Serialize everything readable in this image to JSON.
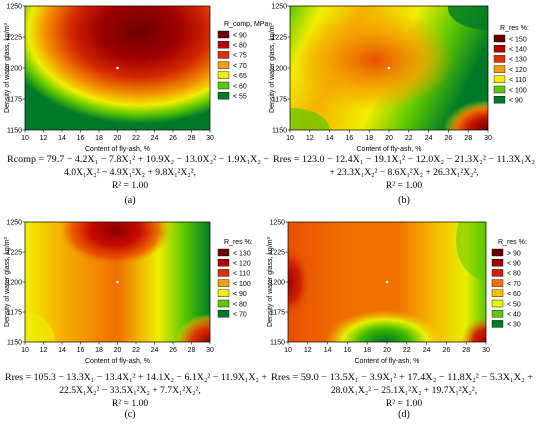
{
  "chart_data": [
    {
      "type": "heatmap",
      "panel_label": "(a)",
      "xlabel": "Content of fly-ash, %",
      "ylabel": "Density of water glass, kg/m³",
      "x_ticks": [
        10,
        12,
        14,
        16,
        18,
        20,
        22,
        24,
        26,
        28,
        30
      ],
      "y_ticks": [
        1150,
        1175,
        1200,
        1225,
        1250
      ],
      "xlim": [
        10,
        30
      ],
      "ylim": [
        1150,
        1250
      ],
      "legend_title": "R_comp, MPa:",
      "legend": [
        {
          "label": "< 90",
          "color": "#6e0000"
        },
        {
          "label": "< 80",
          "color": "#b40000"
        },
        {
          "label": "< 75",
          "color": "#e03000"
        },
        {
          "label": "< 70",
          "color": "#f5a000"
        },
        {
          "label": "< 65",
          "color": "#f0f000"
        },
        {
          "label": "< 60",
          "color": "#5cc800"
        },
        {
          "label": "< 55",
          "color": "#007a28"
        }
      ],
      "center_point": {
        "x": 20,
        "y": 1200
      },
      "equation_lines": [
        "Rcomp = 79.7 − 4.2X₁ − 7.8X₁² + 10.9X₂ − 13.0X₂² − 1.9X₁X₂ −",
        "4.0X₁X₂² − 4.9X₁²X₂ + 9.8X₁²X₂²,",
        "R² = 1.00"
      ]
    },
    {
      "type": "heatmap",
      "panel_label": "(b)",
      "xlabel": "Content of fly-ash, %",
      "ylabel": "Density of water glass, kg/m³",
      "x_ticks": [
        10,
        12,
        14,
        16,
        18,
        20,
        22,
        24,
        26,
        28,
        30
      ],
      "y_ticks": [
        1150,
        1175,
        1200,
        1225,
        1250
      ],
      "xlim": [
        10,
        30
      ],
      "ylim": [
        1150,
        1250
      ],
      "legend_title": "R_res %:",
      "legend": [
        {
          "label": "< 150",
          "color": "#6e0000"
        },
        {
          "label": "< 140",
          "color": "#b40000"
        },
        {
          "label": "< 130",
          "color": "#e03000"
        },
        {
          "label": "< 120",
          "color": "#f5a000"
        },
        {
          "label": "< 110",
          "color": "#f0f000"
        },
        {
          "label": "< 100",
          "color": "#5cc800"
        },
        {
          "label": "< 90",
          "color": "#007a28"
        }
      ],
      "center_point": {
        "x": 20,
        "y": 1200
      },
      "equation_lines": [
        "Rres = 123.0 − 12.4X₁ − 19.1X₁² − 12.0X₂ − 21.3X₂² − 11.3X₁X₂",
        "+ 23.3X₁X₂² − 8.6X₁²X₂ + 26.3X₁²X₂²,",
        "R² = 1.00"
      ]
    },
    {
      "type": "heatmap",
      "panel_label": "(c)",
      "xlabel": "Content of fly-ash, %",
      "ylabel": "Density of water glass, kg/m³",
      "x_ticks": [
        10,
        12,
        14,
        16,
        18,
        20,
        22,
        24,
        26,
        28,
        30
      ],
      "y_ticks": [
        1150,
        1175,
        1200,
        1225,
        1250
      ],
      "xlim": [
        10,
        30
      ],
      "ylim": [
        1150,
        1250
      ],
      "legend_title": "R_res %:",
      "legend": [
        {
          "label": "< 130",
          "color": "#6e0000"
        },
        {
          "label": "< 120",
          "color": "#b40000"
        },
        {
          "label": "< 110",
          "color": "#e03000"
        },
        {
          "label": "< 100",
          "color": "#f5a000"
        },
        {
          "label": "< 90",
          "color": "#f0f000"
        },
        {
          "label": "< 80",
          "color": "#5cc800"
        },
        {
          "label": "< 70",
          "color": "#007a28"
        }
      ],
      "center_point": {
        "x": 20,
        "y": 1200
      },
      "equation_lines": [
        "Rres = 105.3 − 13.3X₁ − 13.4X₁² + 14.1X₂ − 6.1X₂² − 11.9X₁X₂ +",
        "22.5X₁X₂² − 33.5X₁²X₂ + 7.7X₁²X₂²,",
        "R² = 1.00"
      ]
    },
    {
      "type": "heatmap",
      "panel_label": "(d)",
      "xlabel": "Content of fly-ash, %",
      "ylabel": "Density of water glass, kg/m³",
      "x_ticks": [
        10,
        12,
        14,
        16,
        18,
        20,
        22,
        24,
        26,
        28,
        30
      ],
      "y_ticks": [
        1150,
        1175,
        1200,
        1225,
        1250
      ],
      "xlim": [
        10,
        30
      ],
      "ylim": [
        1150,
        1250
      ],
      "legend_title": "R_res %:",
      "legend": [
        {
          "label": "> 90",
          "color": "#6e0000"
        },
        {
          "label": "< 90",
          "color": "#a00000"
        },
        {
          "label": "< 80",
          "color": "#d02000"
        },
        {
          "label": "< 70",
          "color": "#f07000"
        },
        {
          "label": "< 60",
          "color": "#f5c000"
        },
        {
          "label": "< 50",
          "color": "#e6f000"
        },
        {
          "label": "< 40",
          "color": "#5cc800"
        },
        {
          "label": "< 30",
          "color": "#007a28"
        }
      ],
      "center_point": {
        "x": 20,
        "y": 1200
      },
      "equation_lines": [
        "Rres = 59.0 − 13.5X₁ − 3.9X₁² + 17.4X₂ − 11.8X₂² − 5.3X₁X₂ +",
        "28.0X₁X₂² − 25.1X₁²X₂ + 19.7X₁²X₂²,",
        "R² = 1.00"
      ]
    }
  ]
}
